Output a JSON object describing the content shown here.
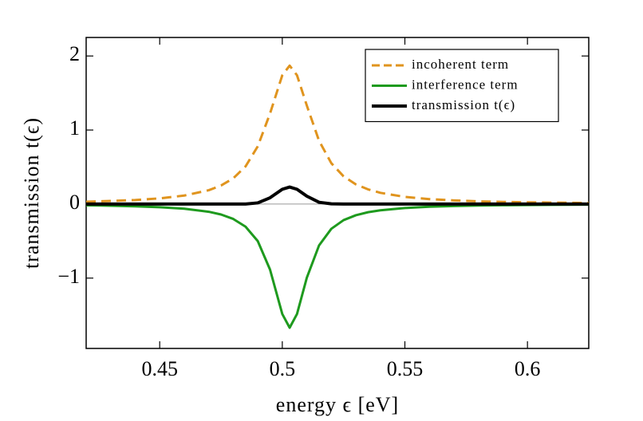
{
  "chart_data": {
    "type": "line",
    "xlabel": "energy ϵ [eV]",
    "ylabel": "transmission t(ϵ)",
    "x": [
      0.42,
      0.43,
      0.44,
      0.45,
      0.46,
      0.47,
      0.475,
      0.48,
      0.485,
      0.49,
      0.495,
      0.5,
      0.503,
      0.506,
      0.51,
      0.515,
      0.52,
      0.525,
      0.53,
      0.535,
      0.54,
      0.55,
      0.56,
      0.57,
      0.58,
      0.59,
      0.6,
      0.61,
      0.625
    ],
    "series": [
      {
        "name": "incoherent term",
        "color": "#e0941e",
        "dashed": true,
        "width": 3,
        "values": [
          0.032,
          0.042,
          0.055,
          0.077,
          0.115,
          0.187,
          0.25,
          0.348,
          0.508,
          0.78,
          1.223,
          1.74,
          1.87,
          1.74,
          1.331,
          0.854,
          0.552,
          0.374,
          0.266,
          0.198,
          0.152,
          0.097,
          0.067,
          0.049,
          0.037,
          0.029,
          0.024,
          0.02,
          0.015
        ]
      },
      {
        "name": "interference term",
        "color": "#1e9a1e",
        "dashed": false,
        "width": 3,
        "values": [
          -0.017,
          -0.022,
          -0.03,
          -0.042,
          -0.063,
          -0.104,
          -0.141,
          -0.201,
          -0.305,
          -0.5,
          -0.885,
          -1.485,
          -1.67,
          -1.485,
          -0.995,
          -0.558,
          -0.334,
          -0.217,
          -0.151,
          -0.11,
          -0.084,
          -0.053,
          -0.036,
          -0.026,
          -0.02,
          -0.016,
          -0.013,
          -0.01,
          -0.008
        ]
      },
      {
        "name": "transmission t(ϵ)",
        "color": "#000000",
        "dashed": false,
        "width": 4,
        "values": [
          0,
          0,
          0,
          0,
          0,
          0,
          0,
          0,
          0.001,
          0.016,
          0.085,
          0.2,
          0.23,
          0.2,
          0.107,
          0.024,
          0.003,
          0,
          0,
          0,
          0,
          0,
          0,
          0,
          0,
          0,
          0,
          0,
          0
        ]
      }
    ],
    "xlim": [
      0.42,
      0.625
    ],
    "ylim": [
      -1.95,
      2.25
    ],
    "xticks": [
      0.45,
      0.5,
      0.55,
      0.6
    ],
    "yticks": [
      {
        "value": -1,
        "label": "−1"
      },
      0,
      1,
      2
    ],
    "legend": "upper right"
  }
}
